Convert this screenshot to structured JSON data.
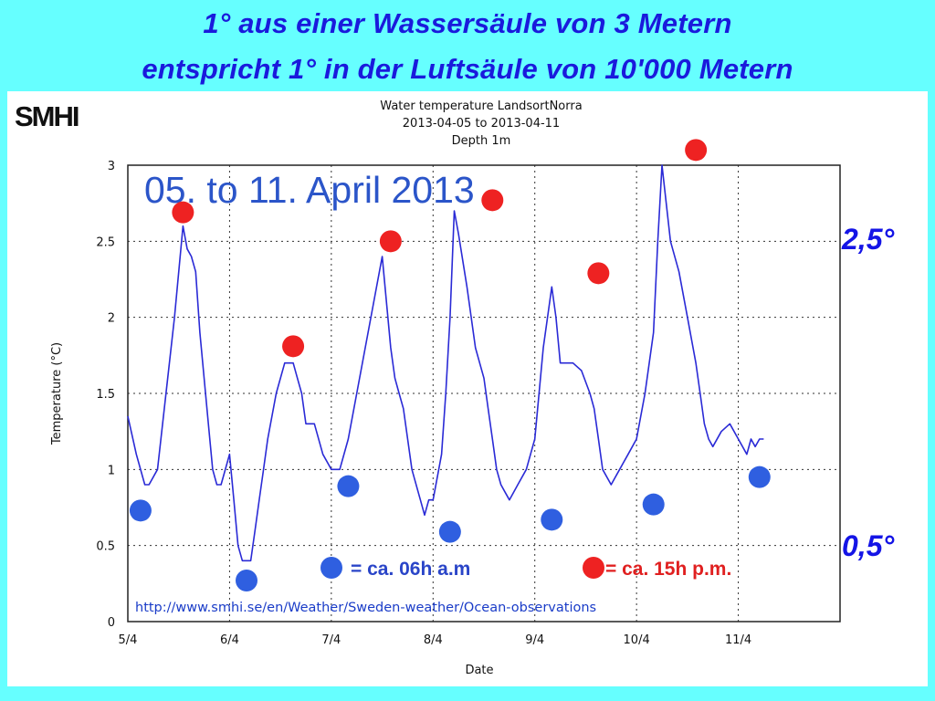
{
  "headline": {
    "line1": "1° aus einer Wassersäule von 3 Metern",
    "line2": "entspricht 1° in der Luftsäule von 10'000 Metern"
  },
  "logo": "SMHI",
  "colors": {
    "background": "#66ffff",
    "series": "#2a2ad6",
    "morning_marker": "#2f5fe0",
    "afternoon_marker": "#ee2222",
    "side_labels": "#1414e6"
  },
  "chart_data": {
    "type": "line",
    "title": "Water temperature LandsortNorra",
    "subtitle": "2013-04-05 to 2013-04-11",
    "subtitle2": "Depth 1m",
    "xlabel": "Date",
    "ylabel": "Temperature (°C)",
    "xlim": [
      "2013-04-05",
      "2013-04-12"
    ],
    "ylim": [
      0,
      3
    ],
    "x_tick_labels": [
      "5/4",
      "6/4",
      "7/4",
      "8/4",
      "9/4",
      "10/4",
      "11/4"
    ],
    "y_tick_labels": [
      "0",
      "0.5",
      "1",
      "1.5",
      "2",
      "2.5",
      "3"
    ],
    "grid": true,
    "overlay_text": "05. to 11. April 2013",
    "series": [
      {
        "x": [
          "2013-04-05 00:00",
          "2013-04-05 02:00",
          "2013-04-05 04:00",
          "2013-04-05 05:00",
          "2013-04-05 07:00",
          "2013-04-05 09:00",
          "2013-04-05 11:00",
          "2013-04-05 13:00",
          "2013-04-05 14:00",
          "2013-04-05 15:00",
          "2013-04-05 16:00",
          "2013-04-05 17:00",
          "2013-04-05 19:00",
          "2013-04-05 20:00",
          "2013-04-05 21:00",
          "2013-04-05 22:00",
          "2013-04-06 00:00",
          "2013-04-06 01:00",
          "2013-04-06 02:00",
          "2013-04-06 03:00",
          "2013-04-06 05:00",
          "2013-04-06 06:00",
          "2013-04-06 07:00",
          "2013-04-06 08:00",
          "2013-04-06 09:00",
          "2013-04-06 11:00",
          "2013-04-06 13:00",
          "2013-04-06 15:00",
          "2013-04-06 16:00",
          "2013-04-06 17:00",
          "2013-04-06 18:00",
          "2013-04-06 20:00",
          "2013-04-06 22:00",
          "2013-04-07 00:00",
          "2013-04-07 02:00",
          "2013-04-07 04:00",
          "2013-04-07 06:00",
          "2013-04-07 08:00",
          "2013-04-07 10:00",
          "2013-04-07 12:00",
          "2013-04-07 14:00",
          "2013-04-07 15:00",
          "2013-04-07 16:00",
          "2013-04-07 17:00",
          "2013-04-07 19:00",
          "2013-04-07 21:00",
          "2013-04-07 22:00",
          "2013-04-07 23:00",
          "2013-04-08 00:00",
          "2013-04-08 02:00",
          "2013-04-08 03:00",
          "2013-04-08 04:00",
          "2013-04-08 05:00",
          "2013-04-08 06:00",
          "2013-04-08 08:00",
          "2013-04-08 10:00",
          "2013-04-08 12:00",
          "2013-04-08 13:00",
          "2013-04-08 14:00",
          "2013-04-08 15:00",
          "2013-04-08 16:00",
          "2013-04-08 17:00",
          "2013-04-08 18:00",
          "2013-04-08 20:00",
          "2013-04-08 22:00",
          "2013-04-09 00:00",
          "2013-04-09 02:00",
          "2013-04-09 04:00",
          "2013-04-09 05:00",
          "2013-04-09 06:00",
          "2013-04-09 07:00",
          "2013-04-09 09:00",
          "2013-04-09 11:00",
          "2013-04-09 13:00",
          "2013-04-09 14:00",
          "2013-04-09 15:00",
          "2013-04-09 16:00",
          "2013-04-09 18:00",
          "2013-04-09 20:00",
          "2013-04-09 22:00",
          "2013-04-10 00:00",
          "2013-04-10 02:00",
          "2013-04-10 04:00",
          "2013-04-10 05:00",
          "2013-04-10 06:00",
          "2013-04-10 08:00",
          "2013-04-10 10:00",
          "2013-04-10 12:00",
          "2013-04-10 14:00",
          "2013-04-10 15:00",
          "2013-04-10 16:00",
          "2013-04-10 17:00",
          "2013-04-10 18:00",
          "2013-04-10 20:00",
          "2013-04-10 22:00",
          "2013-04-11 00:00",
          "2013-04-11 02:00",
          "2013-04-11 03:00",
          "2013-04-11 04:00",
          "2013-04-11 05:00",
          "2013-04-11 06:00"
        ],
        "values": [
          1.35,
          1.1,
          0.9,
          0.9,
          1.0,
          1.5,
          2.0,
          2.6,
          2.45,
          2.4,
          2.3,
          1.9,
          1.3,
          1.0,
          0.9,
          0.9,
          1.1,
          0.8,
          0.5,
          0.4,
          0.4,
          0.6,
          0.8,
          1.0,
          1.2,
          1.5,
          1.7,
          1.7,
          1.6,
          1.5,
          1.3,
          1.3,
          1.1,
          1.0,
          1.0,
          1.2,
          1.5,
          1.8,
          2.1,
          2.4,
          1.8,
          1.6,
          1.5,
          1.4,
          1.0,
          0.8,
          0.7,
          0.8,
          0.8,
          1.1,
          1.5,
          2.0,
          2.7,
          2.55,
          2.2,
          1.8,
          1.6,
          1.4,
          1.2,
          1.0,
          0.9,
          0.85,
          0.8,
          0.9,
          1.0,
          1.2,
          1.8,
          2.2,
          2.0,
          1.7,
          1.7,
          1.7,
          1.65,
          1.5,
          1.4,
          1.2,
          1.0,
          0.9,
          1.0,
          1.1,
          1.2,
          1.5,
          1.9,
          2.5,
          3.0,
          2.5,
          2.3,
          2.0,
          1.7,
          1.5,
          1.3,
          1.2,
          1.15,
          1.25,
          1.3,
          1.2,
          1.1,
          1.2,
          1.15,
          1.2,
          1.2
        ]
      }
    ],
    "annotations": {
      "morning_points": [
        {
          "x": "2013-04-05 03:00",
          "y": 0.73
        },
        {
          "x": "2013-04-06 04:00",
          "y": 0.27
        },
        {
          "x": "2013-04-07 04:00",
          "y": 0.89
        },
        {
          "x": "2013-04-08 04:00",
          "y": 0.59
        },
        {
          "x": "2013-04-09 04:00",
          "y": 0.67
        },
        {
          "x": "2013-04-10 04:00",
          "y": 0.77
        },
        {
          "x": "2013-04-11 05:00",
          "y": 0.95
        }
      ],
      "afternoon_points": [
        {
          "x": "2013-04-05 13:00",
          "y": 2.69
        },
        {
          "x": "2013-04-06 15:00",
          "y": 1.81
        },
        {
          "x": "2013-04-07 14:00",
          "y": 2.5
        },
        {
          "x": "2013-04-08 14:00",
          "y": 2.77
        },
        {
          "x": "2013-04-09 15:00",
          "y": 2.29
        },
        {
          "x": "2013-04-10 14:00",
          "y": 3.1
        }
      ]
    }
  },
  "legend": {
    "morning": "= ca. 06h a.m",
    "afternoon": "= ca. 15h p.m."
  },
  "source_url": "http://www.smhi.se/en/Weather/Sweden-weather/Ocean-observations",
  "side_labels": {
    "upper": "2,5°",
    "lower": "0,5°"
  }
}
